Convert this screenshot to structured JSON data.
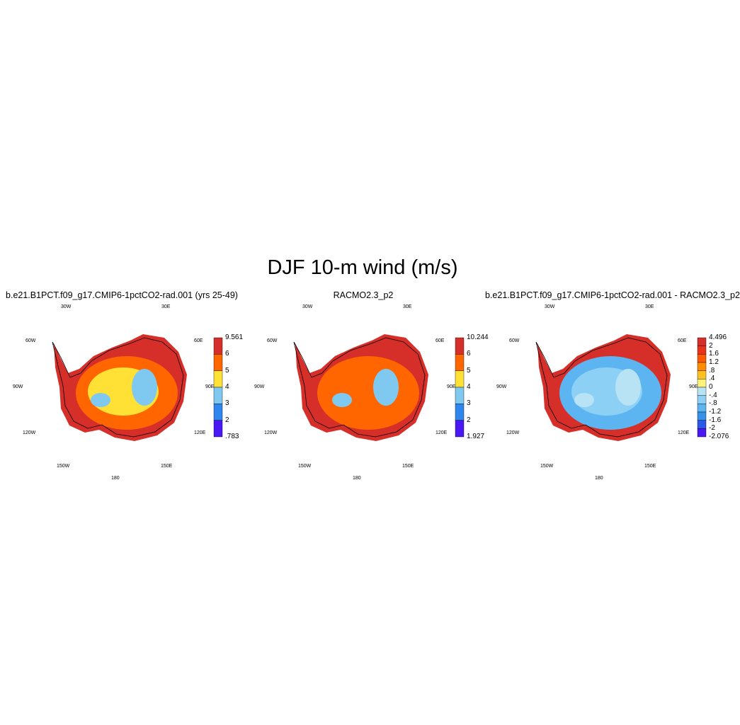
{
  "title": "DJF 10-m wind (m/s)",
  "panels": [
    {
      "title": "b.e21.B1PCT.f09_g17.CMIP6-1pctCO2-rad.001 (yrs 25-49)",
      "lon_labels": {
        "w30": "30W",
        "e30": "30E",
        "w60": "60W",
        "e60": "60E",
        "w90": "90W",
        "e90": "90E",
        "w120": "120W",
        "e120": "120E",
        "w150": "150W",
        "e150": "150E",
        "s180": "180"
      },
      "colorbar": {
        "max": "9.561",
        "min": ".783",
        "levels": [
          "6",
          "5",
          "4",
          "3",
          "2"
        ],
        "colors": [
          "#d62f2a",
          "#ff6600",
          "#ffe135",
          "#7fc8f0",
          "#2f86ee",
          "#4a18f5"
        ]
      },
      "field": {
        "interior": "#ffe135",
        "ring": "#d62f2a",
        "mid": "#ff6600",
        "accent": "#7fc8f0"
      }
    },
    {
      "title": "RACMO2.3_p2",
      "lon_labels": {
        "w30": "30W",
        "e30": "30E",
        "w60": "60W",
        "e60": "60E",
        "w90": "90W",
        "e90": "90E",
        "w120": "120W",
        "e120": "120E",
        "w150": "150W",
        "e150": "150E",
        "s180": "180"
      },
      "colorbar": {
        "max": "10.244",
        "min": "1.927",
        "levels": [
          "6",
          "5",
          "4",
          "3",
          "2"
        ],
        "colors": [
          "#d62f2a",
          "#ff6600",
          "#ffe135",
          "#7fc8f0",
          "#2f86ee",
          "#4a18f5"
        ]
      },
      "field": {
        "interior": "#ff6600",
        "ring": "#d62f2a",
        "mid": "#ff6600",
        "accent": "#7fc8f0"
      }
    },
    {
      "title": "b.e21.B1PCT.f09_g17.CMIP6-1pctCO2-rad.001 - RACMO2.3_p2",
      "lon_labels": {
        "w30": "30W",
        "e30": "30E",
        "w60": "60W",
        "e60": "60E",
        "w90": "90W",
        "e90": "90E",
        "w120": "120W",
        "e120": "120E",
        "w150": "150W",
        "e150": "150E",
        "s180": "180"
      },
      "colorbar": {
        "max": "4.496",
        "min": "-2.076",
        "levels": [
          "2",
          "1.6",
          "1.2",
          ".8",
          ".4",
          "0",
          "-.4",
          "-.8",
          "-1.2",
          "-1.6",
          "-2"
        ],
        "colors": [
          "#d62f2a",
          "#e8321a",
          "#ff5a00",
          "#ff8c00",
          "#ffc020",
          "#fff27a",
          "#b8e3f5",
          "#8dd0f5",
          "#5cb4f0",
          "#3591ea",
          "#2a58e8",
          "#4a18f5"
        ]
      },
      "field": {
        "interior": "#8dd0f5",
        "ring": "#d62f2a",
        "mid": "#5cb4f0",
        "accent": "#b8e3f5"
      }
    }
  ]
}
